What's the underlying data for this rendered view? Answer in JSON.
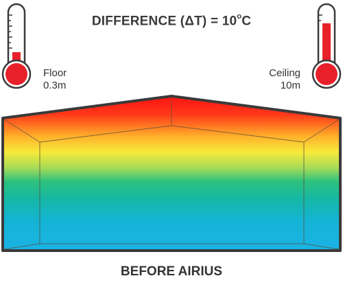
{
  "headline": {
    "prefix": "DIFFERENCE (ΔT) = 10",
    "degree_mark": "o",
    "unit": "C"
  },
  "floor_thermometer": {
    "icon": "thermometer-icon",
    "label": "Floor",
    "height": "0.3m",
    "fill_level_fraction": 0.3,
    "color": "#e8202a"
  },
  "ceiling_thermometer": {
    "icon": "thermometer-icon",
    "label": "Ceiling",
    "height": "10m",
    "fill_level_fraction": 0.85,
    "color": "#e8202a"
  },
  "building": {
    "gradient_colors": [
      "#ff1a1a",
      "#ffe02a",
      "#2bc48a",
      "#18b2e0"
    ],
    "outline_color": "#3a3a3a"
  },
  "caption": "BEFORE AIRIUS"
}
